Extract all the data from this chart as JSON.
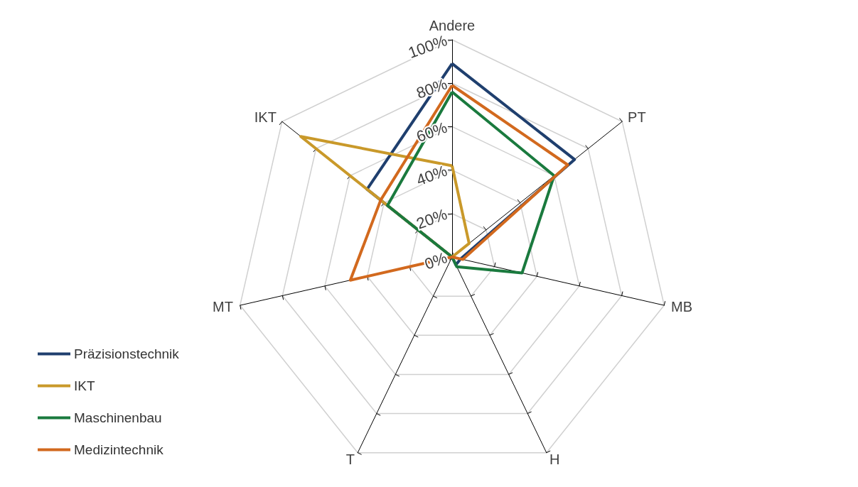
{
  "chart_data": {
    "type": "radar",
    "categories": [
      "Andere",
      "PT",
      "MB",
      "H",
      "T",
      "MT",
      "IKT"
    ],
    "series": [
      {
        "name": "Präzisionstechnik",
        "color": "#1f3f6e",
        "values": [
          89,
          72,
          4,
          4,
          0,
          0,
          50
        ]
      },
      {
        "name": "IKT",
        "color": "#c9992a",
        "values": [
          42,
          10,
          0,
          0,
          0,
          0,
          89
        ]
      },
      {
        "name": "Maschinenbau",
        "color": "#1a7a3e",
        "values": [
          76,
          60,
          33,
          5,
          0,
          0,
          38
        ]
      },
      {
        "name": "Medizintechnik",
        "color": "#d2691e",
        "values": [
          79,
          68,
          5,
          0,
          0,
          48,
          42
        ]
      }
    ],
    "ylim": [
      0,
      100
    ],
    "yticks": [
      {
        "value": 0,
        "label": "0%"
      },
      {
        "value": 20,
        "label": "20%"
      },
      {
        "value": 40,
        "label": "40%"
      },
      {
        "value": 60,
        "label": "60%"
      },
      {
        "value": 80,
        "label": "80%"
      },
      {
        "value": 100,
        "label": "100%"
      }
    ],
    "grid": true,
    "legend": "bottom left",
    "marker": "none"
  }
}
